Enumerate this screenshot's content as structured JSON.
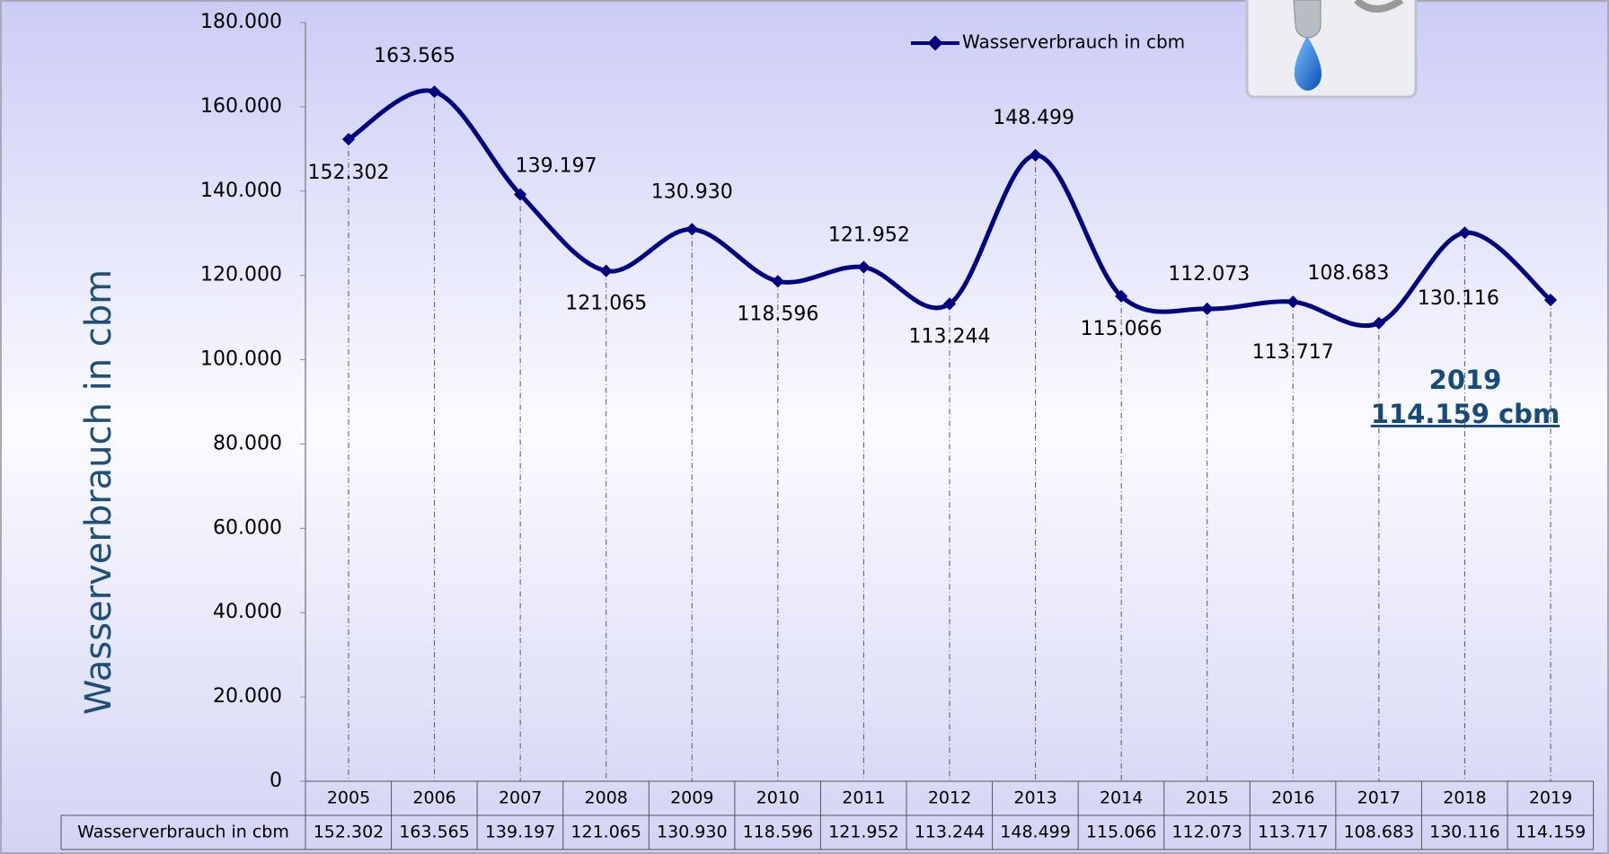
{
  "chart_data": {
    "type": "line",
    "ylabel": "Wasserverbrauch in cbm",
    "categories": [
      "2005",
      "2006",
      "2007",
      "2008",
      "2009",
      "2010",
      "2011",
      "2012",
      "2013",
      "2014",
      "2015",
      "2016",
      "2017",
      "2018",
      "2019"
    ],
    "series": [
      {
        "name": "Wasserverbrauch in cbm",
        "color": "#000080",
        "values": [
          152302,
          163565,
          139197,
          121065,
          130930,
          118596,
          121952,
          113244,
          148499,
          115066,
          112073,
          113717,
          108683,
          130116,
          114159
        ],
        "value_labels": [
          "152.302",
          "163.565",
          "139.197",
          "121.065",
          "130.930",
          "118.596",
          "121.952",
          "113.244",
          "148.499",
          "115.066",
          "112.073",
          "113.717",
          "108.683",
          "130.116",
          "114.159"
        ]
      }
    ],
    "ylim": [
      0,
      180000
    ],
    "yticks": [
      0,
      {
        "value": 20000,
        "label": "20.000"
      },
      {
        "value": 40000,
        "label": "40.000"
      },
      {
        "value": 60000,
        "label": "60.000"
      },
      {
        "value": 80000,
        "label": "80.000"
      },
      {
        "value": 100000,
        "label": "100.000"
      },
      {
        "value": 120000,
        "label": "120.000"
      },
      {
        "value": 140000,
        "label": "140.000"
      },
      {
        "value": 160000,
        "label": "160.000"
      },
      {
        "value": 180000,
        "label": "180.000"
      }
    ],
    "grid": false,
    "legend": "top",
    "annotation": [
      "2019",
      "114.159 cbm"
    ]
  }
}
